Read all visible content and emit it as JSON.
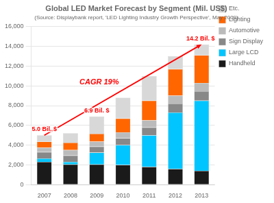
{
  "chart_data": {
    "type": "bar",
    "stacked": true,
    "title": "Global LED Market Forecast by Segment (Mil. US$)",
    "subtitle": "(Source: Displaybank report, 'LED Lighting Industry Growth Perspective', May 2009)",
    "categories": [
      "2007",
      "2008",
      "2009",
      "2010",
      "2011",
      "2012",
      "2013"
    ],
    "series": [
      {
        "name": "Handheld",
        "color": "#1a1a1a",
        "values": [
          2300,
          2050,
          2050,
          2000,
          1800,
          1600,
          1400
        ]
      },
      {
        "name": "Large LCD",
        "color": "#00c5ff",
        "values": [
          350,
          250,
          1200,
          2000,
          3200,
          5700,
          7100
        ]
      },
      {
        "name": "Sign Display",
        "color": "#888888",
        "values": [
          650,
          650,
          600,
          700,
          800,
          900,
          950
        ]
      },
      {
        "name": "Automotive",
        "color": "#bbbbbb",
        "values": [
          450,
          550,
          500,
          600,
          700,
          800,
          850
        ]
      },
      {
        "name": "Lighting",
        "color": "#ff6600",
        "values": [
          600,
          750,
          800,
          1400,
          2000,
          2700,
          2800
        ]
      },
      {
        "name": "Etc.",
        "color": "#d8d8d8",
        "values": [
          650,
          950,
          1750,
          2100,
          2500,
          1300,
          1100
        ]
      }
    ],
    "ylim": [
      0,
      16000
    ],
    "yticks": [
      0,
      {
        "value": 2000,
        "label": "2,000"
      },
      {
        "value": 4000,
        "label": "4,000"
      },
      {
        "value": 6000,
        "label": "6,000"
      },
      {
        "value": 8000,
        "label": "8,000"
      },
      {
        "value": 10000,
        "label": "10,000"
      },
      {
        "value": 12000,
        "label": "12,000"
      },
      {
        "value": 14000,
        "label": "14,000"
      },
      {
        "value": 16000,
        "label": "16,000"
      }
    ],
    "grid": true,
    "legend": "right",
    "arrow": {
      "from": {
        "category": "2007",
        "y": 5000
      },
      "to": {
        "category": "2013",
        "y": 14200
      },
      "color": "red"
    },
    "annotations": [
      {
        "text": "5.0 Bil. $",
        "category": "2007",
        "y": 5000,
        "color": "red"
      },
      {
        "text": "6.9 Bil. $",
        "category": "2009",
        "y": 6900,
        "color": "red"
      },
      {
        "text": "14.2 Bil. $",
        "category": "2013",
        "y": 14200,
        "color": "red"
      },
      {
        "text": "CAGR 19%",
        "color": "red"
      }
    ]
  }
}
